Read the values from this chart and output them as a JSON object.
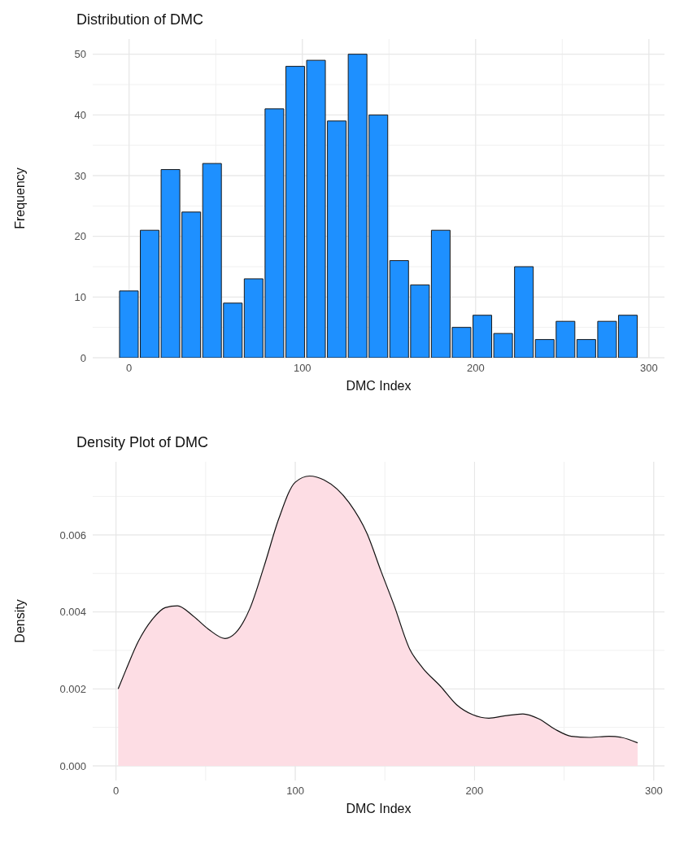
{
  "chart_data": [
    {
      "type": "histogram",
      "title": "Distribution of DMC",
      "xlabel": "DMC Index",
      "ylabel": "Frequency",
      "color": "#1e90ff",
      "bins": [
        -6,
        6,
        18,
        30,
        42,
        54,
        66,
        78,
        90,
        102,
        114,
        126,
        138,
        150,
        162,
        174,
        186,
        198,
        210,
        222,
        234,
        246,
        258,
        270,
        282,
        294
      ],
      "values": [
        11,
        21,
        31,
        24,
        32,
        9,
        13,
        41,
        48,
        49,
        39,
        50,
        40,
        16,
        12,
        21,
        5,
        7,
        4,
        15,
        3,
        6,
        3,
        6,
        7
      ],
      "xlim": [
        -21,
        309
      ],
      "xticks": [
        0,
        100,
        200,
        300
      ],
      "ylim": [
        0,
        52.5
      ],
      "yticks": [
        0,
        10,
        20,
        30,
        40,
        50
      ],
      "grid": true
    },
    {
      "type": "area",
      "title": "Density Plot of DMC",
      "xlabel": "DMC Index",
      "ylabel": "Density",
      "color": "#fddde4",
      "x": [
        1.2,
        5.5,
        12.4,
        20.5,
        27.4,
        34.3,
        42.4,
        51.6,
        60.8,
        66.6,
        74.7,
        82.7,
        90.8,
        100,
        108,
        116,
        130,
        140,
        148,
        155,
        164,
        171,
        181,
        190,
        199,
        208,
        217,
        227,
        236,
        245,
        254,
        264,
        275,
        282,
        291
      ],
      "values": [
        0.002,
        0.00249,
        0.00323,
        0.00382,
        0.00411,
        0.00416,
        0.00392,
        0.00355,
        0.00331,
        0.00345,
        0.00409,
        0.0052,
        0.00642,
        0.00737,
        0.00753,
        0.00743,
        0.00684,
        0.00604,
        0.00504,
        0.00419,
        0.00302,
        0.00255,
        0.00207,
        0.00159,
        0.00133,
        0.00124,
        0.0013,
        0.00135,
        0.00122,
        0.00095,
        0.00077,
        0.00074,
        0.00077,
        0.00074,
        0.0006
      ],
      "xlim": [
        -13,
        306
      ],
      "xticks": [
        0,
        100,
        200,
        300
      ],
      "ylim": [
        -0.00038,
        0.0079
      ],
      "yticks": [
        {
          "value": 0,
          "label": "0.000"
        },
        {
          "value": 0.002,
          "label": "0.002"
        },
        {
          "value": 0.004,
          "label": "0.004"
        },
        {
          "value": 0.006,
          "label": "0.006"
        }
      ],
      "grid": true
    }
  ]
}
